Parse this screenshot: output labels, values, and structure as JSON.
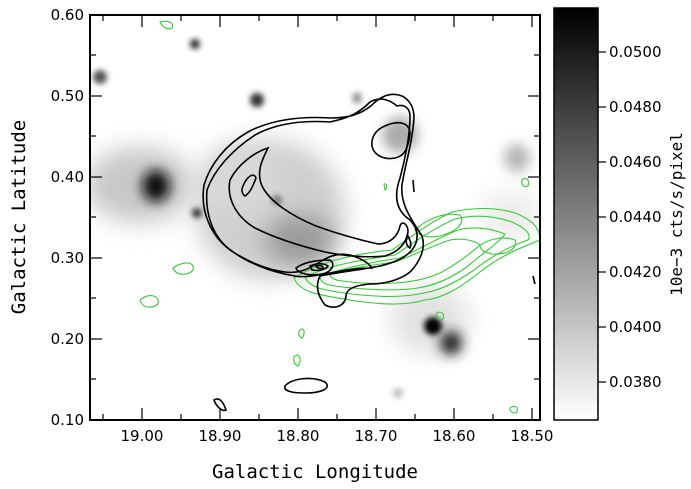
{
  "figure": {
    "x_axis_label": "Galactic Longitude",
    "y_axis_label": "Galactic Latitude",
    "x_ticks": [
      "19.00",
      "18.90",
      "18.80",
      "18.70",
      "18.60",
      "18.50"
    ],
    "y_ticks": [
      "0.60",
      "0.50",
      "0.40",
      "0.30",
      "0.20",
      "0.10"
    ],
    "colorbar_label": "10e−3 cts/s/pixel",
    "colorbar_ticks": [
      "0.0500",
      "0.0480",
      "0.0460",
      "0.0440",
      "0.0420",
      "0.0400",
      "0.0380"
    ],
    "colors": {
      "contour_black": "#000000",
      "contour_green": "#33cc33"
    }
  },
  "chart_data": {
    "type": "heatmap",
    "xlabel": "Galactic Longitude",
    "ylabel": "Galactic Latitude",
    "xlim": [
      19.07,
      18.5
    ],
    "ylim": [
      0.1,
      0.6
    ],
    "x_ticks": [
      19.0,
      18.9,
      18.8,
      18.7,
      18.6,
      18.5
    ],
    "y_ticks": [
      0.6,
      0.5,
      0.4,
      0.3,
      0.2,
      0.1
    ],
    "colorbar": {
      "label": "10e−3 cts/s/pixel",
      "min": 0.0365,
      "max": 0.0515,
      "ticks": [
        0.05,
        0.048,
        0.046,
        0.044,
        0.042,
        0.04,
        0.038
      ]
    }
  }
}
